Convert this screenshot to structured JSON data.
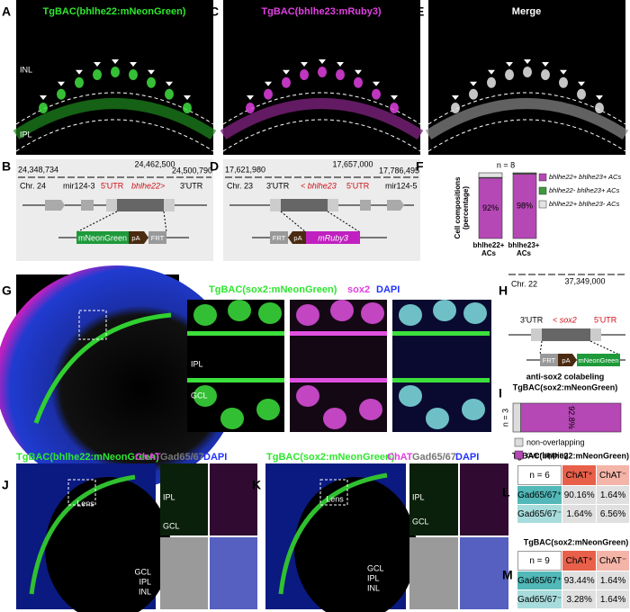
{
  "panels": {
    "A": {
      "label": "A",
      "title": "TgBAC(bhlhe22:mNeonGreen)",
      "layers": [
        "INL",
        "IPL"
      ]
    },
    "B": {
      "label": "B",
      "coords": [
        "24,348,734",
        "24,462,500",
        "24,500,790"
      ],
      "chr": "Chr. 24",
      "mir": "mir124-3",
      "utr5": "5'UTR",
      "gene": "bhlhe22>",
      "utr3": "3'UTR",
      "cassette": [
        "mNeonGreen",
        "pA",
        "FRT"
      ]
    },
    "C": {
      "label": "C",
      "title": "TgBAC(bhlhe23:mRuby3)"
    },
    "D": {
      "label": "D",
      "coords": [
        "17,621,980",
        "17,657,000",
        "17,786,495"
      ],
      "chr": "Chr. 23",
      "utr3": "3'UTR",
      "gene": "< bhlhe23",
      "utr5": "5'UTR",
      "mir": "mir124-5",
      "cassette": [
        "FRT",
        "pA",
        "mRuby3"
      ]
    },
    "E": {
      "label": "E",
      "title": "Merge"
    },
    "F": {
      "label": "F",
      "type": "bar",
      "ylabel": "Cell compositions (percentage)",
      "n": "n = 8",
      "categories": [
        "bhlhe22+ ACs",
        "bhlhe23+ ACs"
      ],
      "ylim": [
        0,
        100
      ],
      "series": [
        {
          "name": "bhlhe22+ bhlhe23+ ACs",
          "color": "#b548b5",
          "values": [
            92,
            98
          ],
          "value_labels": [
            "92%",
            "98%"
          ]
        },
        {
          "name": "bhlhe22- bhlhe23+ ACs",
          "color": "#3c9a3c",
          "values": [
            1,
            1
          ]
        },
        {
          "name": "bhlhe22+ bhlhe23- ACs",
          "color": "#e4e4e4",
          "values": [
            7,
            1
          ]
        }
      ]
    },
    "G": {
      "label": "G",
      "title": "TgBAC(sox2:mNeonGreen)",
      "stain": "sox2",
      "dapi": "DAPI",
      "layers": [
        "IPL",
        "GCL"
      ]
    },
    "H": {
      "label": "H",
      "chr": "Chr. 22",
      "coord": "37,349,000",
      "utr3": "3'UTR",
      "gene": "< sox2",
      "utr5": "5'UTR",
      "cassette": [
        "FRT",
        "pA",
        "mNeonGreen"
      ]
    },
    "I": {
      "label": "I",
      "type": "bar",
      "title": "anti-sox2 colabeling",
      "subtitle": "TgBAC(sox2:mNeonGreen)",
      "n": "n = 3",
      "xlim": [
        0,
        100
      ],
      "series": [
        {
          "name": "non-overlapping",
          "color": "#dcdcdc",
          "values": [
            7.2
          ]
        },
        {
          "name": "overlapping",
          "color": "#b548b5",
          "values": [
            92.8
          ],
          "value_labels": [
            "92.8%"
          ]
        }
      ]
    },
    "J": {
      "label": "J",
      "title": "TgBAC(bhlhe22:mNeonGreen)",
      "stains": [
        "ChAT",
        "Gad65/67",
        "DAPI"
      ],
      "lens": "Lens",
      "layers": [
        "GCL",
        "IPL",
        "INL"
      ],
      "inset_layers": [
        "IPL",
        "GCL"
      ]
    },
    "K": {
      "label": "K",
      "title": "TgBAC(sox2:mNeonGreen)",
      "stains": [
        "ChAT",
        "Gad65/67",
        "DAPI"
      ],
      "lens": "Lens",
      "layers": [
        "GCL",
        "IPL",
        "INL"
      ],
      "inset_layers": [
        "IPL",
        "GCL"
      ]
    },
    "L": {
      "label": "L",
      "title": "TgBAC(bhlhe22:mNeonGreen)",
      "header": [
        "n = 6",
        "ChAT⁺",
        "ChAT⁻"
      ],
      "rows": [
        [
          "Gad65/67⁺",
          "90.16%",
          "1.64%"
        ],
        [
          "Gad65/67⁻",
          "1.64%",
          "6.56%"
        ]
      ]
    },
    "M": {
      "label": "M",
      "title": "TgBAC(sox2:mNeonGreen)",
      "header": [
        "n = 9",
        "ChAT⁺",
        "ChAT⁻"
      ],
      "rows": [
        [
          "Gad65/67⁺",
          "93.44%",
          "1.64%"
        ],
        [
          "Gad65/67⁻",
          "3.28%",
          "1.64%"
        ]
      ]
    }
  }
}
